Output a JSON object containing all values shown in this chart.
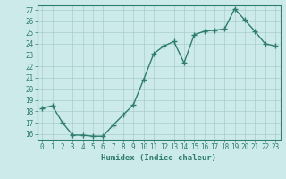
{
  "x": [
    0,
    1,
    2,
    3,
    4,
    5,
    6,
    7,
    8,
    9,
    10,
    11,
    12,
    13,
    14,
    15,
    16,
    17,
    18,
    19,
    20,
    21,
    22,
    23
  ],
  "y": [
    18.3,
    18.5,
    17.0,
    15.9,
    15.9,
    15.8,
    15.8,
    16.8,
    17.7,
    18.6,
    20.8,
    23.1,
    23.8,
    24.2,
    22.3,
    24.8,
    25.1,
    25.2,
    25.3,
    27.1,
    26.1,
    25.1,
    24.0,
    23.8
  ],
  "line_color": "#2e7d6e",
  "marker": "+",
  "marker_size": 4,
  "line_width": 1.0,
  "bg_color": "#cdeaea",
  "grid_color": "#aacccc",
  "xlabel": "Humidex (Indice chaleur)",
  "ylim_min": 15.5,
  "ylim_max": 27.4,
  "xlim_min": -0.5,
  "xlim_max": 23.5,
  "yticks": [
    16,
    17,
    18,
    19,
    20,
    21,
    22,
    23,
    24,
    25,
    26,
    27
  ],
  "xticks": [
    0,
    1,
    2,
    3,
    4,
    5,
    6,
    7,
    8,
    9,
    10,
    11,
    12,
    13,
    14,
    15,
    16,
    17,
    18,
    19,
    20,
    21,
    22,
    23
  ],
  "tick_fontsize": 5.5,
  "label_fontsize": 6.5,
  "tick_color": "#2e7d6e",
  "axis_color": "#2e7d6e"
}
